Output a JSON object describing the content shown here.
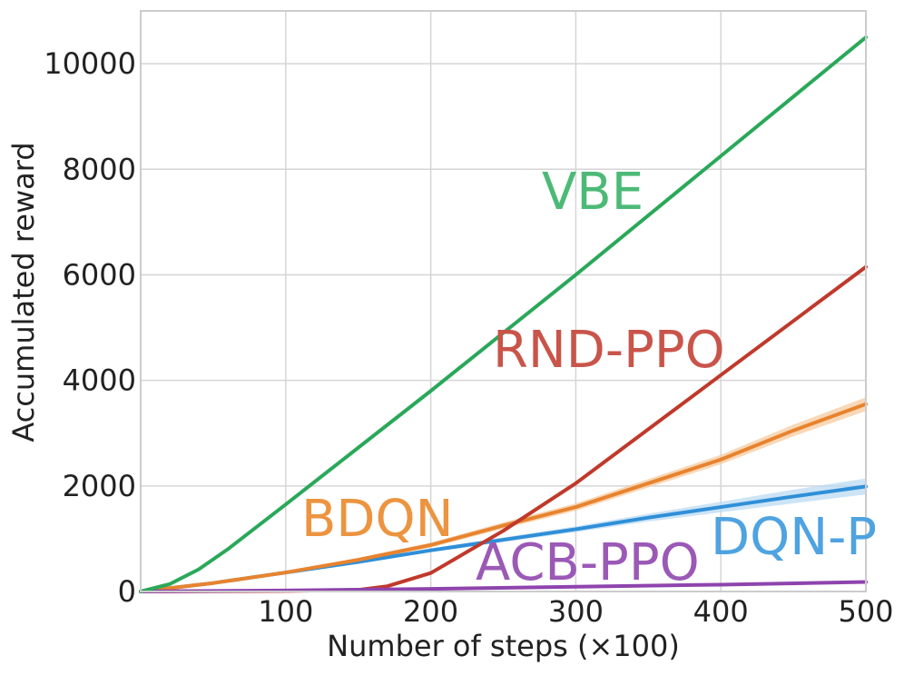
{
  "chart_data": {
    "type": "line",
    "title": "",
    "xlabel": "Number of steps (×100)",
    "ylabel": "Accumulated reward",
    "xlim": [
      0,
      500
    ],
    "ylim": [
      0,
      11000
    ],
    "xticks": [
      100,
      200,
      300,
      400,
      500
    ],
    "yticks": [
      0,
      2000,
      4000,
      6000,
      8000,
      10000
    ],
    "grid": true,
    "legend": "inline labels",
    "series": [
      {
        "name": "VBE",
        "color": "#2aa85a",
        "label_color": "#4cba76",
        "x": [
          0,
          20,
          40,
          60,
          100,
          200,
          300,
          400,
          500
        ],
        "y": [
          0,
          140,
          420,
          800,
          1650,
          3800,
          6000,
          8250,
          10500
        ]
      },
      {
        "name": "RND-PPO",
        "color": "#c0392b",
        "label_color": "#c9544a",
        "x": [
          0,
          100,
          150,
          170,
          200,
          250,
          300,
          400,
          500
        ],
        "y": [
          0,
          10,
          30,
          100,
          350,
          1150,
          2050,
          4100,
          6150
        ]
      },
      {
        "name": "BDQN",
        "color": "#e8832e",
        "label_color": "#ec943f",
        "band_color": "#f5c89a",
        "x": [
          0,
          50,
          100,
          150,
          200,
          250,
          300,
          350,
          400,
          450,
          500
        ],
        "y": [
          0,
          160,
          360,
          600,
          880,
          1250,
          1600,
          2050,
          2500,
          3050,
          3550
        ],
        "band": [
          0,
          10,
          25,
          35,
          45,
          60,
          70,
          80,
          90,
          110,
          130
        ]
      },
      {
        "name": "DQN-P",
        "color": "#2f8fd8",
        "label_color": "#4ea3e0",
        "band_color": "#b7d8f2",
        "x": [
          0,
          50,
          100,
          150,
          200,
          250,
          300,
          350,
          400,
          450,
          500
        ],
        "y": [
          0,
          160,
          360,
          560,
          780,
          980,
          1180,
          1400,
          1600,
          1800,
          1990
        ],
        "band": [
          0,
          8,
          15,
          25,
          35,
          45,
          55,
          75,
          100,
          130,
          150
        ]
      },
      {
        "name": "ACB-PPO",
        "color": "#8e44ad",
        "label_color": "#9b59b6",
        "x": [
          0,
          100,
          200,
          300,
          400,
          500
        ],
        "y": [
          0,
          20,
          50,
          90,
          130,
          180
        ]
      }
    ]
  }
}
